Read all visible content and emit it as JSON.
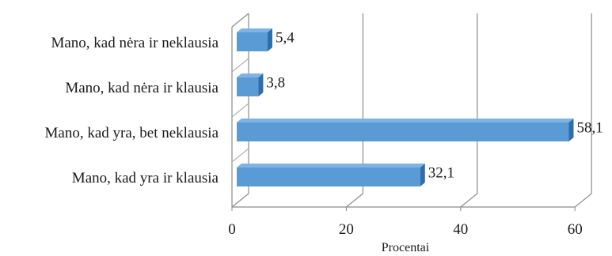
{
  "chart_data": {
    "type": "bar",
    "orientation": "horizontal",
    "style": "3d",
    "categories": [
      "Mano, kad yra ir klausia",
      "Mano, kad yra, bet neklausia",
      "Mano, kad nėra ir klausia",
      "Mano, kad nėra ir neklausia"
    ],
    "values": [
      32.1,
      58.1,
      3.8,
      5.4
    ],
    "value_labels": [
      "32,1",
      "58,1",
      "3,8",
      "5,4"
    ],
    "xlabel": "Procentai",
    "xlim": [
      0,
      60
    ],
    "xticks": [
      0,
      20,
      40,
      60
    ],
    "xtick_labels": [
      "0",
      "20",
      "40",
      "60"
    ],
    "grid": "vertical",
    "bar_color": "#5b9bd5",
    "bar_top_color": "#7fb2e5",
    "bar_side_color": "#2f6ea8"
  }
}
